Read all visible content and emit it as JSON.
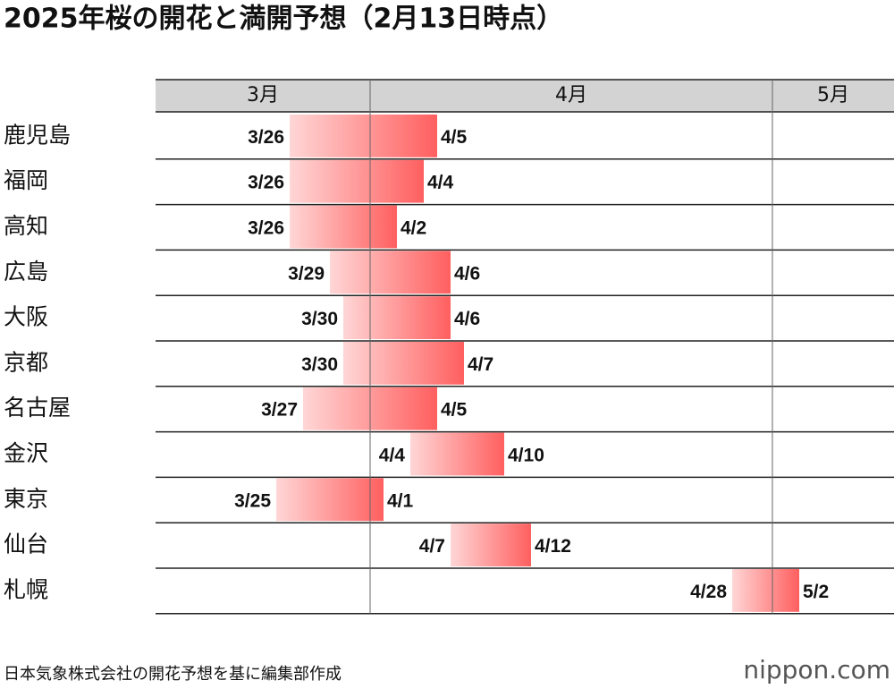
{
  "title": "2025年桜の開花と満開予想（2月13日時点）",
  "months": [
    "3月",
    "4月",
    "5月"
  ],
  "rows": [
    {
      "city": "鹿児島",
      "start": "3/26",
      "end": "4/5"
    },
    {
      "city": "福岡",
      "start": "3/26",
      "end": "4/4"
    },
    {
      "city": "高知",
      "start": "3/26",
      "end": "4/2"
    },
    {
      "city": "広島",
      "start": "3/29",
      "end": "4/6"
    },
    {
      "city": "大阪",
      "start": "3/30",
      "end": "4/6"
    },
    {
      "city": "京都",
      "start": "3/30",
      "end": "4/7"
    },
    {
      "city": "名古屋",
      "start": "3/27",
      "end": "4/5"
    },
    {
      "city": "金沢",
      "start": "4/4",
      "end": "4/10"
    },
    {
      "city": "東京",
      "start": "3/25",
      "end": "4/1"
    },
    {
      "city": "仙台",
      "start": "4/7",
      "end": "4/12"
    },
    {
      "city": "札幌",
      "start": "4/28",
      "end": "5/2"
    }
  ],
  "source": "日本気象株式会社の開花予想を基に編集部作成",
  "logo": "nippon.com"
}
